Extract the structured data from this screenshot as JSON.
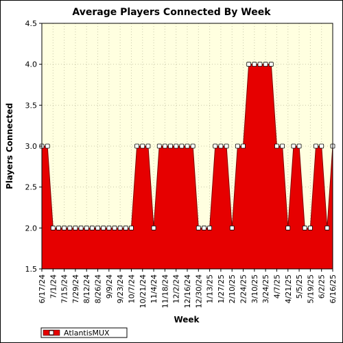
{
  "chart_data": {
    "type": "area",
    "title": "Average Players Connected By Week",
    "xlabel": "Week",
    "ylabel": "Players Connected",
    "ylim": [
      1.5,
      4.5
    ],
    "yticks": [
      "1.5",
      "2.0",
      "2.5",
      "3.0",
      "3.5",
      "4.0",
      "4.5"
    ],
    "grid": true,
    "legend_position": "bottom-left",
    "x_tick_labels": [
      "6/17/24",
      "7/1/24",
      "7/15/24",
      "7/29/24",
      "8/12/24",
      "8/26/24",
      "9/9/24",
      "9/23/24",
      "10/7/24",
      "10/21/24",
      "11/4/24",
      "11/18/24",
      "12/2/24",
      "12/16/24",
      "12/30/24",
      "1/13/25",
      "1/27/25",
      "2/10/25",
      "2/24/25",
      "3/10/25",
      "3/24/25",
      "4/7/25",
      "4/21/25",
      "5/5/25",
      "5/19/25",
      "6/2/25",
      "6/16/25"
    ],
    "series": [
      {
        "name": "AtlantisMUX",
        "color": "#e60000",
        "x": [
          "6/17/24",
          "6/24/24",
          "7/1/24",
          "7/8/24",
          "7/15/24",
          "7/22/24",
          "7/29/24",
          "8/5/24",
          "8/12/24",
          "8/19/24",
          "8/26/24",
          "9/2/24",
          "9/9/24",
          "9/16/24",
          "9/23/24",
          "9/30/24",
          "10/7/24",
          "10/14/24",
          "10/21/24",
          "10/28/24",
          "11/4/24",
          "11/11/24",
          "11/18/24",
          "11/25/24",
          "12/2/24",
          "12/9/24",
          "12/16/24",
          "12/23/24",
          "12/30/24",
          "1/6/25",
          "1/13/25",
          "1/20/25",
          "1/27/25",
          "2/3/25",
          "2/10/25",
          "2/17/25",
          "2/24/25",
          "3/3/25",
          "3/10/25",
          "3/17/25",
          "3/24/25",
          "3/31/25",
          "4/7/25",
          "4/14/25",
          "4/21/25",
          "4/28/25",
          "5/5/25",
          "5/12/25",
          "5/19/25",
          "5/26/25",
          "6/2/25",
          "6/9/25",
          "6/16/25"
        ],
        "values": [
          3,
          3,
          2,
          2,
          2,
          2,
          2,
          2,
          2,
          2,
          2,
          2,
          2,
          2,
          2,
          2,
          2,
          3,
          3,
          3,
          2,
          3,
          3,
          3,
          3,
          3,
          3,
          3,
          2,
          2,
          2,
          3,
          3,
          3,
          2,
          3,
          3,
          4,
          4,
          4,
          4,
          4,
          3,
          3,
          2,
          3,
          3,
          2,
          2,
          3,
          3,
          2,
          3
        ]
      }
    ]
  }
}
